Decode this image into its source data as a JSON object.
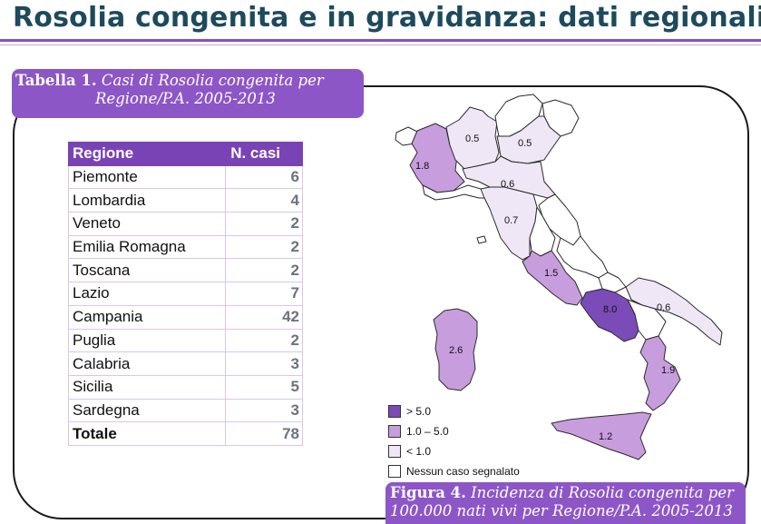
{
  "header": {
    "title": "Rosolia congenita e in gravidanza: dati regionali"
  },
  "table_caption": {
    "label": "Tabella 1.",
    "line1": "Casi di Rosolia congenita per",
    "line2": "Regione/P.A. 2005-2013"
  },
  "table": {
    "columns": [
      "Regione",
      "N. casi"
    ],
    "rows": [
      {
        "region": "Piemonte",
        "cases": "6"
      },
      {
        "region": "Lombardia",
        "cases": "4"
      },
      {
        "region": "Veneto",
        "cases": "2"
      },
      {
        "region": "Emilia Romagna",
        "cases": "2"
      },
      {
        "region": "Toscana",
        "cases": "2"
      },
      {
        "region": "Lazio",
        "cases": "7"
      },
      {
        "region": "Campania",
        "cases": "42"
      },
      {
        "region": "Puglia",
        "cases": "2"
      },
      {
        "region": "Calabria",
        "cases": "3"
      },
      {
        "region": "Sicilia",
        "cases": "5"
      },
      {
        "region": "Sardegna",
        "cases": "3"
      }
    ],
    "total": {
      "region": "Totale",
      "cases": "78"
    }
  },
  "map": {
    "values": {
      "piemonte": "1.8",
      "lombardia": "0.5",
      "veneto": "0.5",
      "emilia": "0.6",
      "toscana": "0.7",
      "lazio": "1.5",
      "campania": "8.0",
      "puglia": "0.6",
      "calabria": "1.9",
      "sicilia": "1.2",
      "sardegna": "2.6"
    },
    "colors": {
      "high": "#7b4bb8",
      "mid": "#c89ddd",
      "low": "#efe6f6",
      "none": "#ffffff"
    }
  },
  "legend": [
    {
      "label": "> 5.0",
      "color": "#7b4bb8"
    },
    {
      "label": "1.0 – 5.0",
      "color": "#c89ddd"
    },
    {
      "label": "< 1.0",
      "color": "#efe6f6"
    },
    {
      "label": "Nessun caso segnalato",
      "color": "#ffffff"
    }
  ],
  "figure_caption": {
    "label": "Figura 4.",
    "line1": "Incidenza di Rosolia congenita per",
    "line2": "100.000 nati vivi per Regione/P.A. 2005-2013"
  }
}
